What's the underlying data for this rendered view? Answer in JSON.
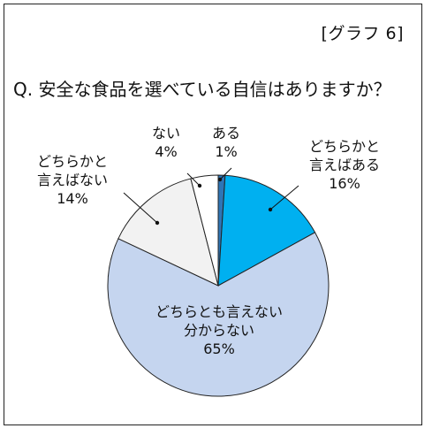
{
  "graph_label": "[グラフ 6]",
  "chart_data": {
    "type": "pie",
    "title": "Q. 安全な食品を選べている自信はありますか？",
    "slices": [
      {
        "label_lines": [
          "ある"
        ],
        "pct_text": "1%",
        "value": 1,
        "color": "#2e75b6"
      },
      {
        "label_lines": [
          "どちらかと",
          "言えばある"
        ],
        "pct_text": "16%",
        "value": 16,
        "color": "#00b0f0"
      },
      {
        "label_lines": [
          "どちらとも言えない",
          "分からない"
        ],
        "pct_text": "65%",
        "value": 65,
        "color": "#c5d5ef"
      },
      {
        "label_lines": [
          "どちらかと",
          "言えばない"
        ],
        "pct_text": "14%",
        "value": 14,
        "color": "#f2f2f2"
      },
      {
        "label_lines": [
          "ない"
        ],
        "pct_text": "4%",
        "value": 4,
        "color": "#ffffff"
      }
    ]
  }
}
